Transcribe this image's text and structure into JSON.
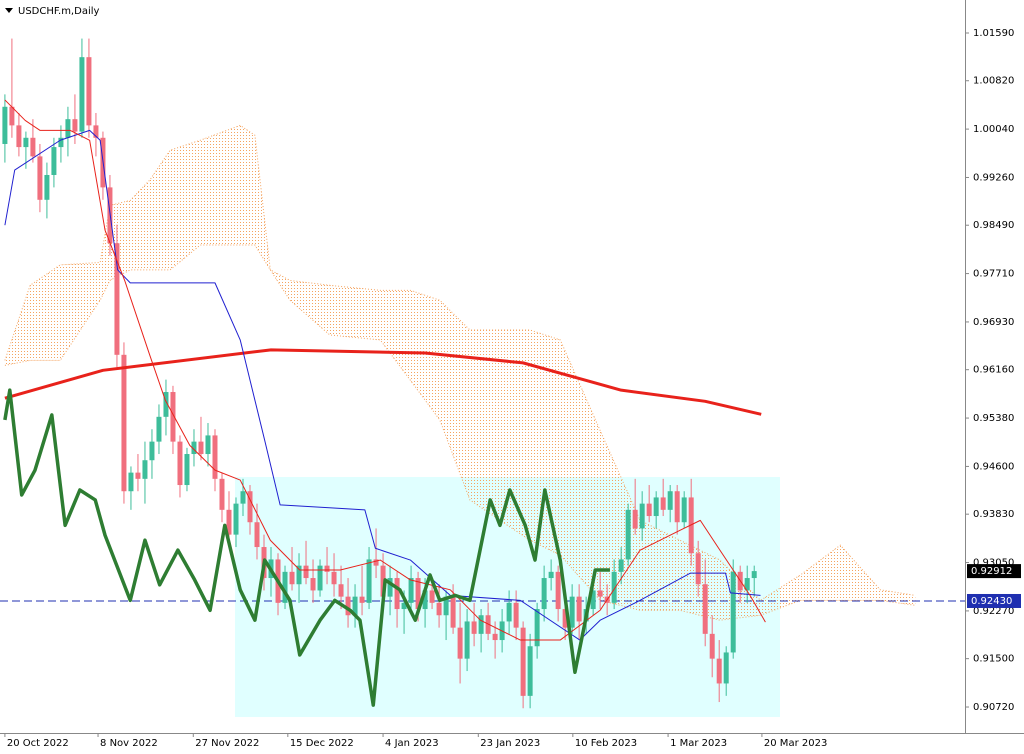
{
  "chart_data": {
    "type": "candlestick",
    "title": "USDCHF.m,Daily",
    "up_color": "#3dbd9a",
    "down_color": "#f06f7e",
    "ylim": [
      0.90301,
      1.02122
    ],
    "xlim": [
      -0.7,
      137.1
    ],
    "yticks": [
      {
        "value": 1.0159,
        "label": "1.01590"
      },
      {
        "value": 1.0082,
        "label": "1.00820"
      },
      {
        "value": 1.0004,
        "label": "1.00040"
      },
      {
        "value": 0.9926,
        "label": "0.99260"
      },
      {
        "value": 0.9849,
        "label": "0.98490"
      },
      {
        "value": 0.9771,
        "label": "0.97710"
      },
      {
        "value": 0.9693,
        "label": "0.96930"
      },
      {
        "value": 0.9616,
        "label": "0.96160"
      },
      {
        "value": 0.9538,
        "label": "0.95380"
      },
      {
        "value": 0.946,
        "label": "0.94600"
      },
      {
        "value": 0.9383,
        "label": "0.93830"
      },
      {
        "value": 0.9305,
        "label": "0.93050"
      },
      {
        "value": 0.9227,
        "label": "0.92270"
      },
      {
        "value": 0.915,
        "label": "0.91500"
      },
      {
        "value": 0.9072,
        "label": "0.90720"
      }
    ],
    "xticks": [
      {
        "value": 0,
        "label": "20 Oct 2022"
      },
      {
        "value": 13.3,
        "label": "8 Nov 2022"
      },
      {
        "value": 26.9,
        "label": "27 Nov 2022"
      },
      {
        "value": 40.4,
        "label": "15 Dec 2022"
      },
      {
        "value": 54,
        "label": "4 Jan 2023"
      },
      {
        "value": 67.6,
        "label": "23 Jan 2023"
      },
      {
        "value": 81.1,
        "label": "10 Feb 2023"
      },
      {
        "value": 94.7,
        "label": "1 Mar 2023"
      },
      {
        "value": 108.1,
        "label": "20 Mar 2023"
      }
    ],
    "open": [
      0.998,
      1.004,
      1.001,
      0.9975,
      0.999,
      0.996,
      0.989,
      0.993,
      0.9975,
      0.999,
      1.002,
      1.0,
      1.012,
      1.001,
      0.999,
      0.991,
      0.982,
      0.964,
      0.942,
      0.945,
      0.944,
      0.947,
      0.95,
      0.954,
      0.958,
      0.95,
      0.943,
      0.948,
      0.95,
      0.948,
      0.951,
      0.944,
      0.939,
      0.935,
      0.94,
      0.942,
      0.937,
      0.933,
      0.928,
      0.931,
      0.924,
      0.929,
      0.927,
      0.93,
      0.928,
      0.926,
      0.93,
      0.929,
      0.927,
      0.925,
      0.922,
      0.925,
      0.924,
      0.931,
      0.93,
      0.925,
      0.928,
      0.923,
      0.924,
      0.928,
      0.923,
      0.926,
      0.924,
      0.922,
      0.925,
      0.92,
      0.915,
      0.921,
      0.919,
      0.922,
      0.919,
      0.918,
      0.921,
      0.924,
      0.92,
      0.909,
      0.917,
      0.923,
      0.928,
      0.929,
      0.923,
      0.92,
      0.925,
      0.921,
      0.923,
      0.926,
      0.925,
      0.924,
      0.929,
      0.931,
      0.939,
      0.936,
      0.94,
      0.938,
      0.941,
      0.939,
      0.942,
      0.937,
      0.941,
      0.932,
      0.927,
      0.919,
      0.915,
      0.911,
      0.916,
      0.929,
      0.926,
      0.928
    ],
    "high": [
      1.006,
      1.015,
      1.003,
      1.0,
      1.002,
      0.998,
      0.995,
      0.999,
      1.001,
      1.004,
      1.006,
      1.015,
      1.015,
      1.003,
      1.0,
      0.993,
      0.985,
      0.966,
      0.946,
      0.948,
      0.95,
      0.952,
      0.956,
      0.96,
      0.959,
      0.951,
      0.949,
      0.952,
      0.954,
      0.953,
      0.952,
      0.945,
      0.942,
      0.941,
      0.944,
      0.943,
      0.94,
      0.935,
      0.933,
      0.932,
      0.93,
      0.933,
      0.932,
      0.934,
      0.931,
      0.931,
      0.933,
      0.932,
      0.93,
      0.928,
      0.927,
      0.93,
      0.933,
      0.936,
      0.932,
      0.93,
      0.929,
      0.926,
      0.93,
      0.929,
      0.928,
      0.928,
      0.927,
      0.926,
      0.927,
      0.924,
      0.923,
      0.924,
      0.923,
      0.924,
      0.921,
      0.923,
      0.926,
      0.926,
      0.921,
      0.919,
      0.924,
      0.93,
      0.931,
      0.93,
      0.926,
      0.927,
      0.927,
      0.925,
      0.928,
      0.929,
      0.927,
      0.931,
      0.933,
      0.94,
      0.944,
      0.942,
      0.943,
      0.942,
      0.944,
      0.943,
      0.943,
      0.942,
      0.944,
      0.934,
      0.931,
      0.922,
      0.918,
      0.917,
      0.931,
      0.93,
      0.93,
      0.93
    ],
    "low": [
      0.995,
      0.999,
      0.996,
      0.994,
      0.995,
      0.987,
      0.986,
      0.991,
      0.995,
      0.996,
      0.998,
      0.999,
      0.999,
      0.996,
      0.989,
      0.98,
      0.962,
      0.94,
      0.939,
      0.942,
      0.94,
      0.944,
      0.948,
      0.951,
      0.948,
      0.941,
      0.942,
      0.946,
      0.947,
      0.946,
      0.942,
      0.937,
      0.933,
      0.933,
      0.938,
      0.935,
      0.931,
      0.926,
      0.925,
      0.922,
      0.923,
      0.926,
      0.924,
      0.927,
      0.924,
      0.925,
      0.927,
      0.925,
      0.923,
      0.92,
      0.92,
      0.922,
      0.923,
      0.928,
      0.923,
      0.922,
      0.92,
      0.919,
      0.922,
      0.921,
      0.92,
      0.923,
      0.92,
      0.918,
      0.919,
      0.911,
      0.913,
      0.917,
      0.916,
      0.918,
      0.915,
      0.916,
      0.919,
      0.918,
      0.907,
      0.907,
      0.915,
      0.921,
      0.926,
      0.921,
      0.918,
      0.919,
      0.918,
      0.919,
      0.922,
      0.923,
      0.922,
      0.923,
      0.927,
      0.93,
      0.935,
      0.934,
      0.937,
      0.936,
      0.938,
      0.937,
      0.935,
      0.936,
      0.93,
      0.925,
      0.917,
      0.912,
      0.908,
      0.909,
      0.915,
      0.924,
      0.924,
      0.925
    ],
    "close": [
      1.004,
      1.001,
      0.9975,
      0.999,
      0.996,
      0.989,
      0.993,
      0.9975,
      0.999,
      1.002,
      1.0,
      1.012,
      1.001,
      0.999,
      0.991,
      0.982,
      0.964,
      0.942,
      0.945,
      0.944,
      0.947,
      0.95,
      0.954,
      0.958,
      0.95,
      0.943,
      0.948,
      0.95,
      0.948,
      0.951,
      0.944,
      0.939,
      0.935,
      0.94,
      0.942,
      0.937,
      0.933,
      0.928,
      0.931,
      0.924,
      0.929,
      0.927,
      0.93,
      0.928,
      0.926,
      0.93,
      0.929,
      0.927,
      0.925,
      0.922,
      0.925,
      0.924,
      0.931,
      0.93,
      0.925,
      0.928,
      0.923,
      0.924,
      0.928,
      0.923,
      0.926,
      0.924,
      0.922,
      0.925,
      0.92,
      0.915,
      0.921,
      0.919,
      0.922,
      0.919,
      0.918,
      0.921,
      0.924,
      0.92,
      0.909,
      0.917,
      0.923,
      0.928,
      0.929,
      0.923,
      0.92,
      0.925,
      0.921,
      0.923,
      0.926,
      0.925,
      0.924,
      0.929,
      0.931,
      0.939,
      0.936,
      0.94,
      0.938,
      0.941,
      0.939,
      0.942,
      0.937,
      0.941,
      0.932,
      0.927,
      0.919,
      0.915,
      0.911,
      0.916,
      0.929,
      0.926,
      0.928,
      0.92912
    ],
    "cloud": {
      "color": "#f4a460",
      "x": [
        0,
        3.6,
        7.9,
        13.6,
        15,
        17.9,
        20.7,
        23.6,
        27.9,
        33.6,
        35.7,
        37.9,
        40.7,
        46.4,
        53.6,
        57.9,
        62.1,
        66.4,
        70.7,
        75,
        79.3,
        85,
        90.7,
        96.4,
        102.1,
        107.9,
        113.6,
        119.3,
        125,
        130
      ],
      "upper": [
        0.9631,
        0.9752,
        0.9785,
        0.9789,
        0.9881,
        0.9889,
        0.9922,
        0.997,
        0.9986,
        1.001,
        0.9994,
        0.9777,
        0.976,
        0.9752,
        0.9744,
        0.9744,
        0.9728,
        0.968,
        0.968,
        0.968,
        0.9664,
        0.9518,
        0.9373,
        0.9341,
        0.9309,
        0.9244,
        0.9285,
        0.9333,
        0.9261,
        0.9252
      ],
      "lower": [
        0.9623,
        0.9631,
        0.9631,
        0.9728,
        0.976,
        0.9777,
        0.9777,
        0.9777,
        0.9817,
        0.9817,
        0.9817,
        0.9777,
        0.9728,
        0.9672,
        0.9664,
        0.9599,
        0.9535,
        0.9406,
        0.9373,
        0.9341,
        0.9317,
        0.9244,
        0.9228,
        0.9228,
        0.9212,
        0.922,
        0.9244,
        0.9244,
        0.9244,
        0.9236
      ]
    },
    "overlays": [
      {
        "color": "#e8221b",
        "width": 3,
        "x": [
          0,
          14,
          38,
          60,
          74,
          88,
          100,
          108
        ],
        "values": [
          0.957,
          0.9615,
          0.9648,
          0.9643,
          0.9627,
          0.9583,
          0.9565,
          0.9544
        ]
      },
      {
        "color": "#2020d0",
        "width": 1,
        "x": [
          0,
          1.4,
          7.9,
          12.1,
          13.6,
          16.1,
          17.9,
          30,
          33.6,
          37.1,
          39.3,
          51.4,
          52.9,
          57.9,
          63.6,
          73.6,
          82.1,
          85,
          90.7,
          97.9,
          102.9,
          103.6,
          107.9
        ],
        "values": [
          0.9849,
          0.9938,
          0.9986,
          1.0002,
          0.9986,
          0.9777,
          0.9756,
          0.9756,
          0.9664,
          0.9502,
          0.9398,
          0.939,
          0.9328,
          0.9309,
          0.9252,
          0.9244,
          0.918,
          0.9212,
          0.9244,
          0.9288,
          0.9288,
          0.9256,
          0.9252
        ]
      },
      {
        "color": "#e8221b",
        "width": 1,
        "x": [
          0,
          2.9,
          5,
          9.3,
          12.1,
          14.3,
          17.1,
          20.7,
          22.9,
          26.4,
          30,
          33.6,
          37.9,
          42.1,
          47.9,
          53.6,
          57.9,
          63.6,
          67.9,
          73.6,
          79.3,
          85,
          90.7,
          96.4,
          99.3,
          102.1,
          106.4,
          108.6
        ],
        "values": [
          1.0051,
          1.0018,
          1.0002,
          1.0002,
          0.9986,
          0.9841,
          0.976,
          0.9639,
          0.9567,
          0.9494,
          0.9454,
          0.9438,
          0.9341,
          0.9293,
          0.9293,
          0.9309,
          0.9277,
          0.9261,
          0.9212,
          0.918,
          0.918,
          0.9228,
          0.9325,
          0.9357,
          0.9373,
          0.9325,
          0.9252,
          0.9209
        ]
      },
      {
        "color": "#2e7d32",
        "width": 3.5,
        "x": [
          0,
          0.7,
          2.4,
          4.3,
          6.7,
          8.6,
          10.7,
          12.9,
          14.3,
          17.9,
          20,
          22.1,
          24.7,
          27.1,
          29.3,
          31.4,
          33.6,
          35.7,
          37.1,
          40.7,
          42.1,
          45,
          47.1,
          49.3,
          50.7,
          52.6,
          54.3,
          56.4,
          58.6,
          60.7,
          62.1,
          64.3,
          66.4,
          69.3,
          70.7,
          72.1,
          74.3,
          75.7,
          77.1,
          79.3,
          81.4,
          82.9,
          84.3,
          86.4
        ],
        "values": [
          0.9535,
          0.9583,
          0.9414,
          0.9454,
          0.9543,
          0.9365,
          0.9422,
          0.9406,
          0.9349,
          0.9244,
          0.9341,
          0.9269,
          0.9325,
          0.9277,
          0.9228,
          0.9365,
          0.9261,
          0.9212,
          0.9309,
          0.9244,
          0.9156,
          0.9212,
          0.9244,
          0.9228,
          0.9212,
          0.9075,
          0.9277,
          0.9261,
          0.9212,
          0.9285,
          0.9244,
          0.9252,
          0.9244,
          0.9406,
          0.9365,
          0.9422,
          0.9365,
          0.9309,
          0.9422,
          0.9309,
          0.9128,
          0.9212,
          0.9293,
          0.9293
        ]
      }
    ],
    "price_line": {
      "value": 0.9243,
      "label": "0.92430",
      "color": "#1f2fb0"
    },
    "last_price": {
      "value": 0.92912,
      "label": "0.92912"
    }
  }
}
